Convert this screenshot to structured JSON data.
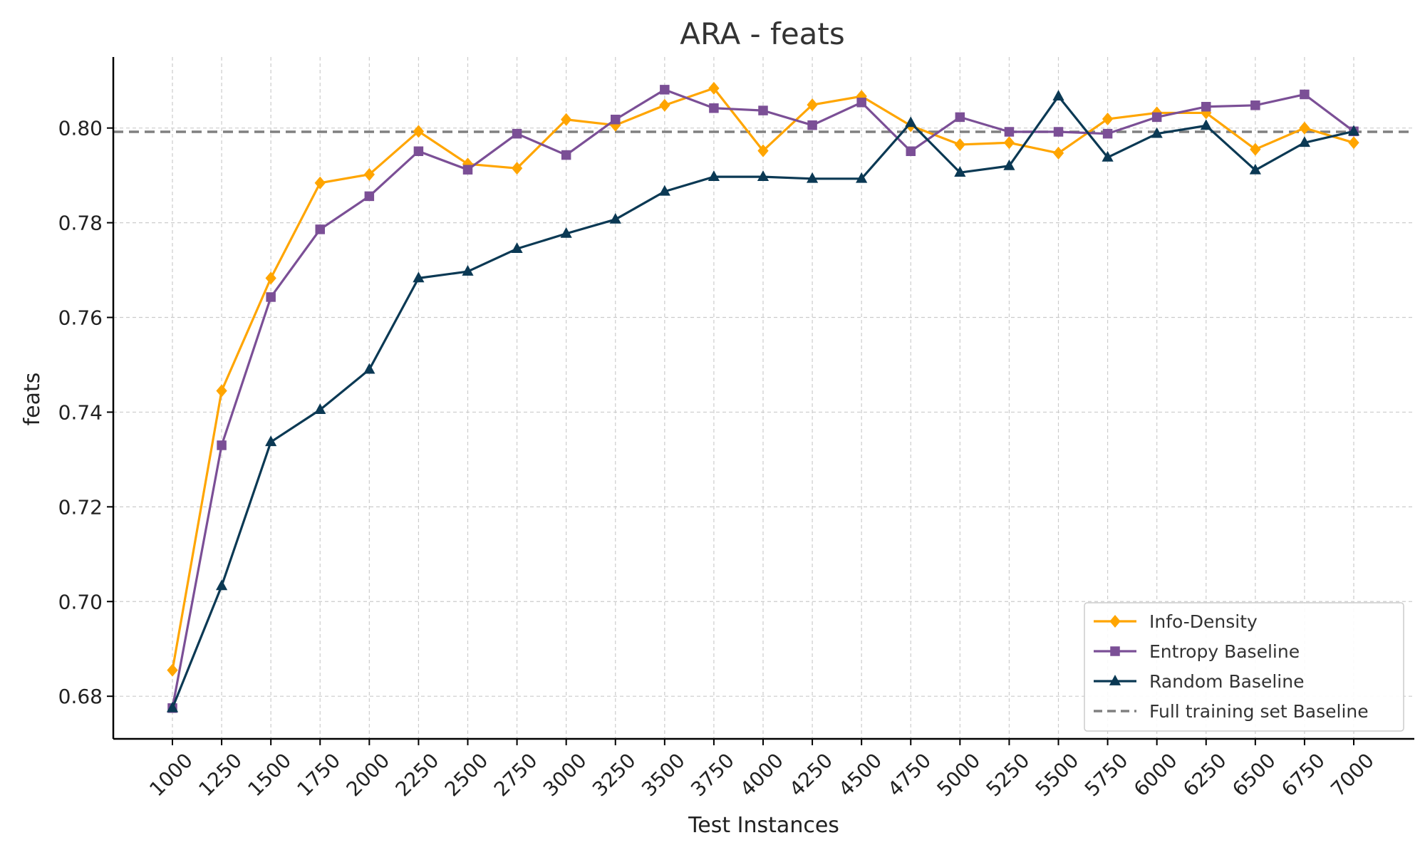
{
  "chart_data": {
    "type": "line",
    "title": "ARA - feats",
    "xlabel": "Test Instances",
    "ylabel": "feats",
    "x": [
      1000,
      1250,
      1500,
      1750,
      2000,
      2250,
      2500,
      2750,
      3000,
      3250,
      3500,
      3750,
      4000,
      4250,
      4500,
      4750,
      5000,
      5250,
      5500,
      5750,
      6000,
      6250,
      6500,
      6750,
      7000
    ],
    "x_tick_labels": [
      "1000",
      "1250",
      "1500",
      "1750",
      "2000",
      "2250",
      "2500",
      "2750",
      "3000",
      "3250",
      "3500",
      "3750",
      "4000",
      "4250",
      "4500",
      "4750",
      "5000",
      "5250",
      "5500",
      "5750",
      "6000",
      "6250",
      "6500",
      "6750",
      "7000"
    ],
    "ylim": [
      0.671,
      0.815
    ],
    "y_ticks": [
      0.68,
      0.7,
      0.72,
      0.74,
      0.76,
      0.78,
      0.8
    ],
    "y_tick_labels": [
      "0.68",
      "0.70",
      "0.72",
      "0.74",
      "0.76",
      "0.78",
      "0.80"
    ],
    "grid": true,
    "legend_position": "bottom-right",
    "series": [
      {
        "name": "Info-Density",
        "color": "#ffa500",
        "marker": "diamond",
        "values": [
          0.6855,
          0.7445,
          0.7683,
          0.7884,
          0.7902,
          0.7993,
          0.7924,
          0.7915,
          0.8018,
          0.8006,
          0.8048,
          0.8084,
          0.7952,
          0.8049,
          0.8067,
          0.8005,
          0.7965,
          0.7969,
          0.7947,
          0.8019,
          0.8032,
          0.8032,
          0.7955,
          0.8,
          0.7969
        ]
      },
      {
        "name": "Entropy Baseline",
        "color": "#7b4f96",
        "marker": "square",
        "values": [
          0.6775,
          0.733,
          0.7643,
          0.7786,
          0.7856,
          0.7951,
          0.7912,
          0.7988,
          0.7943,
          0.8018,
          0.8081,
          0.8042,
          0.8037,
          0.8006,
          0.8054,
          0.7951,
          0.8023,
          0.7992,
          0.7992,
          0.7988,
          0.8023,
          0.8045,
          0.8048,
          0.8071,
          0.7993
        ]
      },
      {
        "name": "Random Baseline",
        "color": "#0b3954",
        "marker": "triangle",
        "values": [
          0.6775,
          0.7033,
          0.7337,
          0.7405,
          0.749,
          0.7683,
          0.7697,
          0.7745,
          0.7777,
          0.7807,
          0.7866,
          0.7897,
          0.7897,
          0.7893,
          0.7893,
          0.8011,
          0.7906,
          0.792,
          0.8067,
          0.7938,
          0.7988,
          0.8005,
          0.7911,
          0.7969,
          0.7993
        ]
      }
    ],
    "reference_line": {
      "name": "Full training set Baseline",
      "value": 0.7992,
      "color": "#808080",
      "style": "dashed"
    }
  }
}
